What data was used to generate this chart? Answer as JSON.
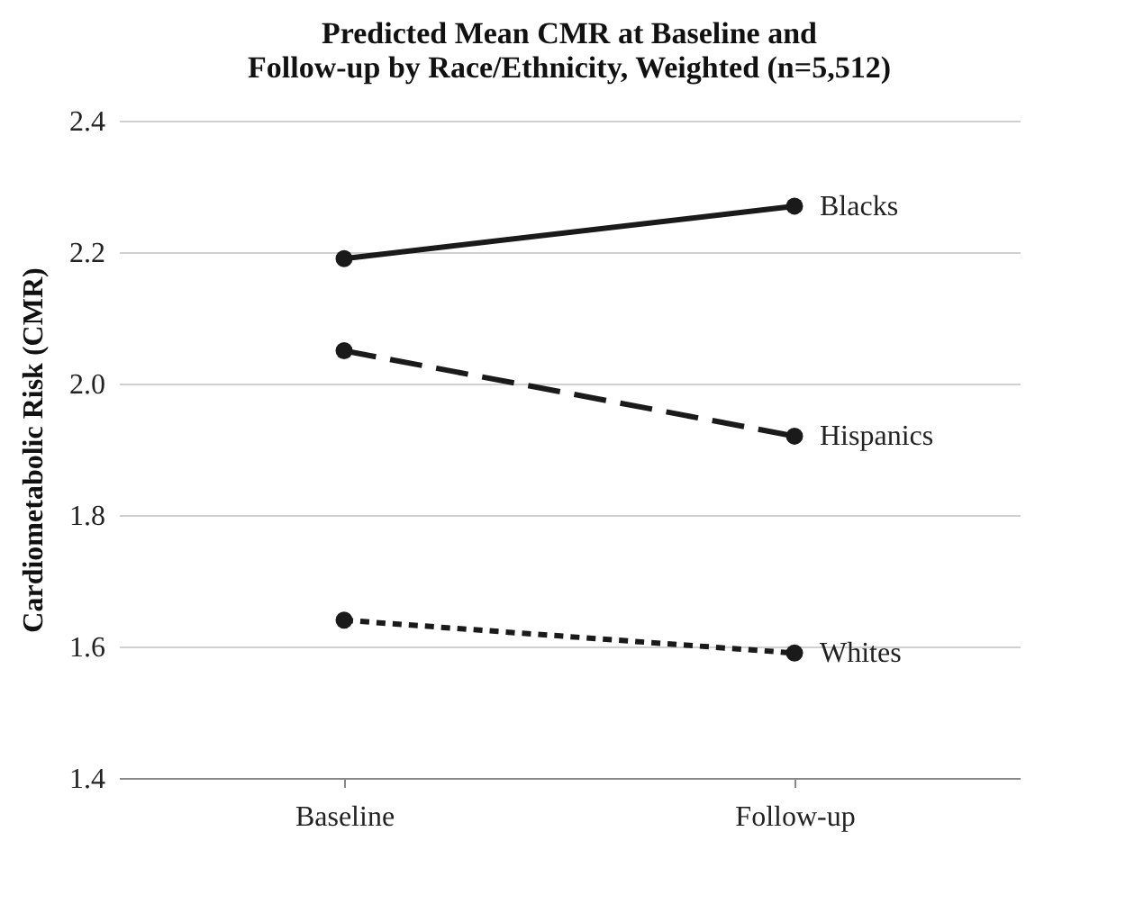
{
  "chart_data": {
    "type": "line",
    "title": "Predicted Mean CMR at Baseline and\nFollow-up by Race/Ethnicity, Weighted (n=5,512)",
    "ylabel": "Cardiometabolic Risk (CMR)",
    "categories": [
      "Baseline",
      "Follow-up"
    ],
    "series": [
      {
        "name": "Blacks",
        "color": "#1a1a1a",
        "line_style": "solid",
        "values": [
          2.19,
          2.27
        ]
      },
      {
        "name": "Hispanics",
        "color": "#1a1a1a",
        "line_style": "dashed",
        "values": [
          2.05,
          1.92
        ]
      },
      {
        "name": "Whites",
        "color": "#1a1a1a",
        "line_style": "dotted",
        "values": [
          1.64,
          1.59
        ]
      }
    ],
    "ylim": [
      1.4,
      2.4
    ],
    "yticks": [
      1.4,
      1.6,
      1.8,
      {
        "value": 2.0,
        "label": "2.0"
      },
      2.2,
      2.4
    ],
    "grid": "y",
    "marker": "circle",
    "legend": false
  }
}
